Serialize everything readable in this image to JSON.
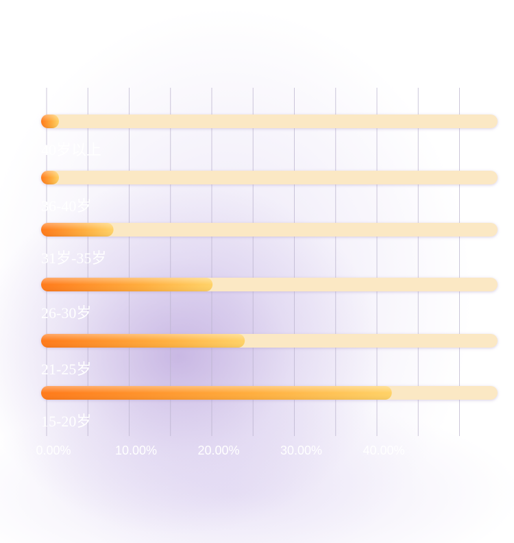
{
  "chart_data": {
    "type": "bar",
    "orientation": "horizontal",
    "categories": [
      "40岁以上",
      "36-40岁",
      "31岁-35岁",
      "26-30岁",
      "21-25岁",
      "15-20岁"
    ],
    "values": [
      0.9,
      1.4,
      8.1,
      20.1,
      24.0,
      41.8
    ],
    "xlim": [
      0,
      55
    ],
    "x_tick_labels": [
      "0.00%",
      "10.00%",
      "20.00%",
      "30.00%",
      "40.00%"
    ],
    "x_tick_values": [
      0,
      10,
      20,
      30,
      40
    ],
    "grid": true,
    "legend": "none",
    "colors": {
      "track": "#fbe8c4",
      "bar_start": "#ff7f1e",
      "bar_end": "#ffc65a",
      "bar_highlight": "#ffe79b",
      "text": "#ffffff",
      "grid": "#b9b3cc"
    }
  }
}
